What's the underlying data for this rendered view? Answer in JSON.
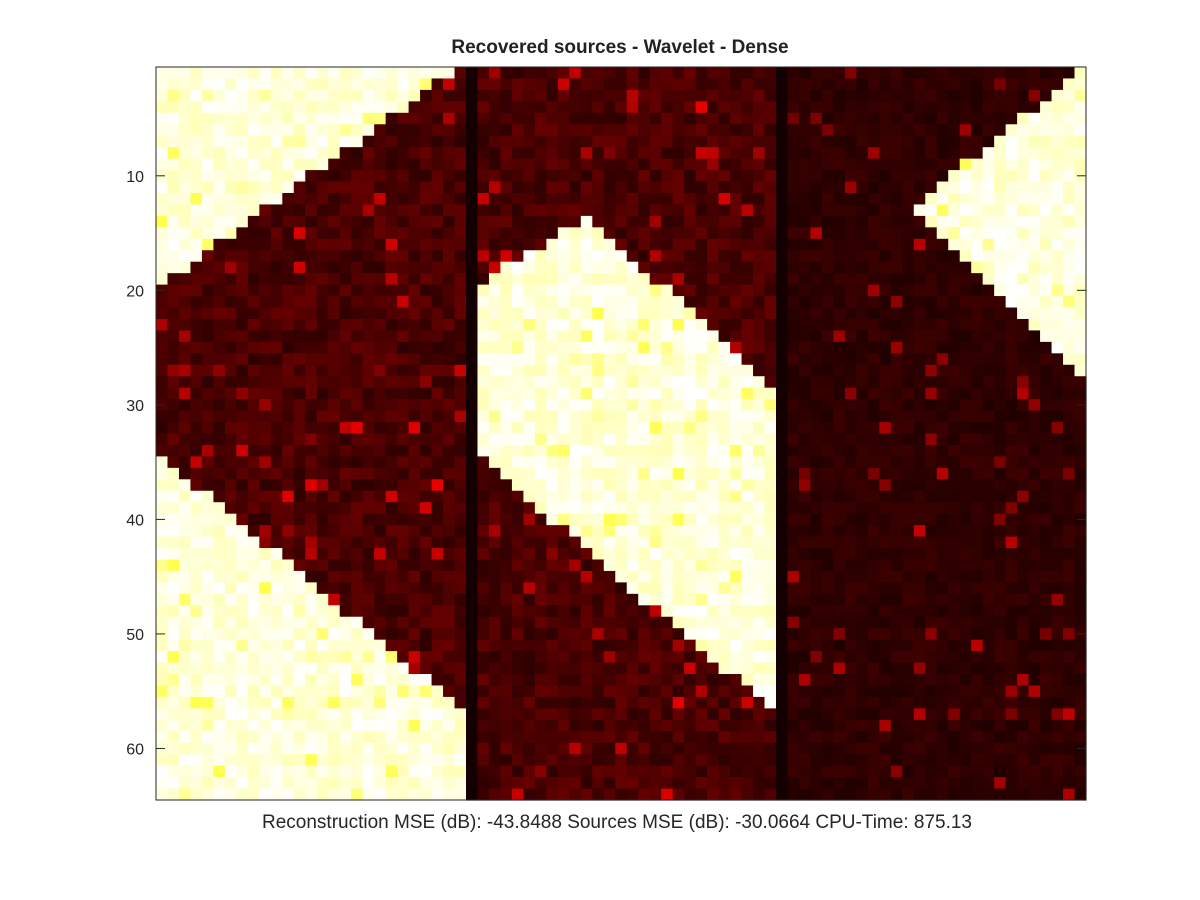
{
  "chart_data": {
    "type": "heatmap",
    "title": "Recovered sources - Wavelet - Dense",
    "xlabel": "Reconstruction MSE (dB): -43.8488  Sources MSE (dB): -30.0664 CPU-Time: 875.13",
    "ylabel": "",
    "colormap": "hot",
    "grid": false,
    "rows": 64,
    "cols": 81,
    "ylim": [
      0.5,
      64.5
    ],
    "xlim": [
      0.5,
      81.5
    ],
    "yticks": [
      10,
      20,
      30,
      40,
      50,
      60
    ],
    "x_ticks_shown": false,
    "panels": [
      {
        "name": "panel-1",
        "col_range": [
          1,
          27
        ],
        "bright_bands": [
          {
            "region": "upper",
            "row_boundary_at_col_start": 19.5,
            "row_boundary_at_col_end": 0.5
          },
          {
            "region": "lower",
            "row_boundary_at_col_start": 34.5,
            "row_boundary_at_col_end": 56.5
          }
        ]
      },
      {
        "name": "panel-2",
        "col_range": [
          28,
          54
        ],
        "bright_bands": [
          {
            "region": "strip",
            "start_col": 28,
            "end_col": 28.8,
            "top_row": 0.5,
            "bottom_row": 3
          },
          {
            "region": "parallelogram",
            "top_at_col_start": 19.5,
            "top_at_col_end": 28.2,
            "top_peak_col": 38,
            "top_peak_row": 13.5,
            "bottom_at_col_start": 34.5,
            "bottom_at_col_end": 56.5
          }
        ]
      },
      {
        "name": "panel-3",
        "col_range": [
          55,
          81
        ],
        "bright_bands": [
          {
            "region": "triangle",
            "start_col": 66,
            "end_col": 81,
            "top_at_start": 13,
            "top_at_end": 0.8,
            "bottom_at_start": 13,
            "bottom_at_end": 27.6
          }
        ]
      }
    ],
    "color_levels": {
      "dark_background": "#2a0000",
      "darker_background": "#1a0000",
      "bright": "#ffffe8",
      "mid": "#ffd060"
    }
  }
}
